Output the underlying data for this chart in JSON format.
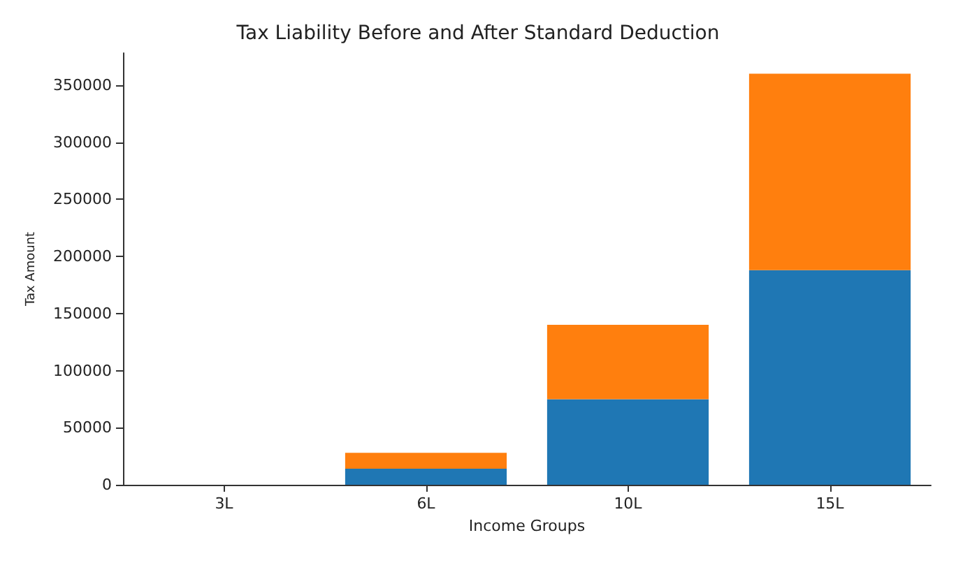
{
  "chart_data": {
    "type": "bar",
    "title": "Tax Liability Before and After Standard Deduction",
    "xlabel": "Income Groups",
    "ylabel": "Tax Amount",
    "categories": [
      "3L",
      "6L",
      "10L",
      "15L"
    ],
    "stacked": true,
    "series": [
      {
        "color": "#1f77b4",
        "values": [
          0,
          14000,
          75000,
          188000
        ]
      },
      {
        "color": "#ff7f0e",
        "values": [
          0,
          14000,
          65000,
          172000
        ]
      }
    ],
    "ylim": [
      0,
      378000
    ],
    "yticks": [
      0,
      50000,
      100000,
      150000,
      200000,
      250000,
      300000,
      350000
    ],
    "grid": false
  }
}
